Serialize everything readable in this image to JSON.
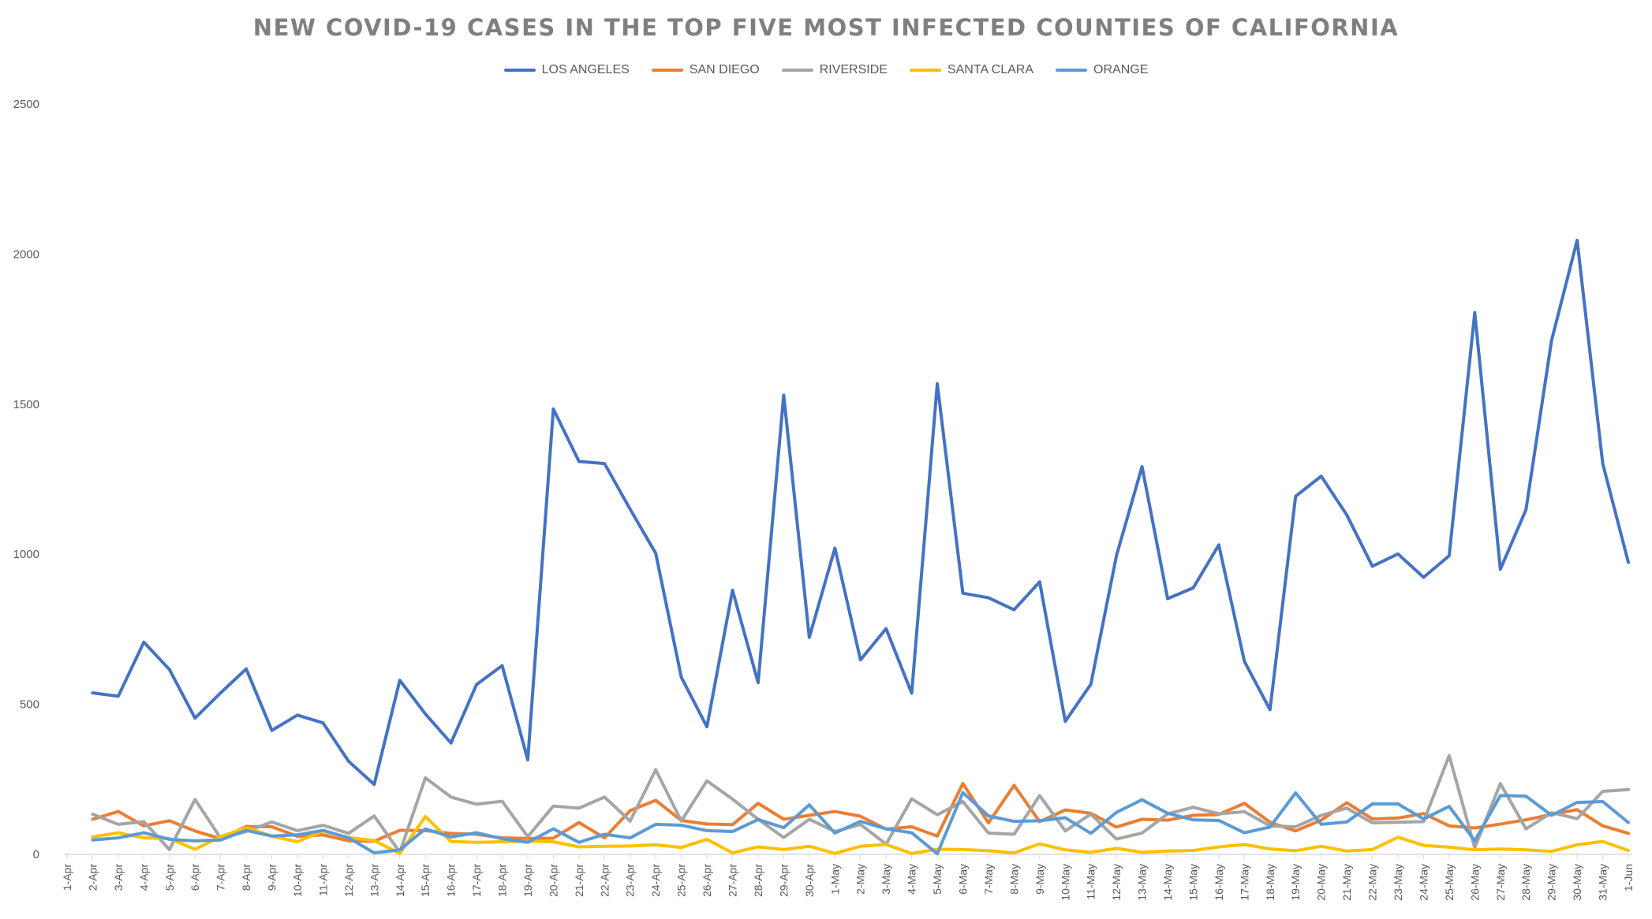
{
  "chart_data": {
    "type": "line",
    "title": "NEW COVID-19 CASES IN THE TOP FIVE MOST INFECTED COUNTIES OF CALIFORNIA",
    "xlabel": "",
    "ylabel": "",
    "ylim": [
      0,
      2500
    ],
    "yticks": [
      0,
      500,
      1000,
      1500,
      2000,
      2500
    ],
    "grid": false,
    "legend_position": "top-center",
    "categories": [
      "1-Apr",
      "2-Apr",
      "3-Apr",
      "4-Apr",
      "5-Apr",
      "6-Apr",
      "7-Apr",
      "8-Apr",
      "9-Apr",
      "10-Apr",
      "11-Apr",
      "12-Apr",
      "13-Apr",
      "14-Apr",
      "15-Apr",
      "16-Apr",
      "17-Apr",
      "18-Apr",
      "19-Apr",
      "20-Apr",
      "21-Apr",
      "22-Apr",
      "23-Apr",
      "24-Apr",
      "25-Apr",
      "26-Apr",
      "27-Apr",
      "28-Apr",
      "29-Apr",
      "30-Apr",
      "1-May",
      "2-May",
      "3-May",
      "4-May",
      "5-May",
      "6-May",
      "7-May",
      "8-May",
      "9-May",
      "10-May",
      "11-May",
      "12-May",
      "13-May",
      "14-May",
      "15-May",
      "16-May",
      "17-May",
      "18-May",
      "19-May",
      "20-May",
      "21-May",
      "22-May",
      "23-May",
      "24-May",
      "25-May",
      "26-May",
      "27-May",
      "28-May",
      "29-May",
      "30-May",
      "31-May",
      "1-Jun"
    ],
    "series": [
      {
        "name": "LOS ANGELES",
        "color": "#4472c4",
        "values": [
          null,
          538,
          527,
          707,
          616,
          454,
          538,
          618,
          413,
          464,
          438,
          310,
          233,
          580,
          468,
          371,
          566,
          629,
          315,
          1484,
          1309,
          1302,
          1150,
          1003,
          590,
          425,
          880,
          572,
          1530,
          723,
          1020,
          648,
          752,
          537,
          1568,
          870,
          855,
          815,
          908,
          443,
          567,
          995,
          1292,
          852,
          888,
          1031,
          643,
          482,
          1193,
          1260,
          1131,
          960,
          1001,
          923,
          995,
          1805,
          950,
          1148,
          1712,
          2046,
          1302,
          973
        ]
      },
      {
        "name": "SAN DIEGO",
        "color": "#ed7d31",
        "values": [
          null,
          117,
          143,
          95,
          112,
          78,
          52,
          93,
          92,
          60,
          65,
          45,
          44,
          80,
          79,
          70,
          67,
          55,
          53,
          54,
          106,
          55,
          146,
          180,
          113,
          101,
          99,
          170,
          117,
          130,
          143,
          127,
          84,
          92,
          61,
          236,
          105,
          230,
          109,
          148,
          137,
          91,
          117,
          114,
          130,
          133,
          170,
          107,
          78,
          114,
          172,
          118,
          121,
          136,
          95,
          88,
          101,
          115,
          133,
          149,
          95,
          70
        ]
      },
      {
        "name": "RIVERSIDE",
        "color": "#a5a5a5",
        "values": [
          null,
          134,
          100,
          109,
          16,
          183,
          54,
          76,
          108,
          79,
          97,
          70,
          128,
          7,
          255,
          191,
          167,
          177,
          59,
          161,
          154,
          191,
          111,
          282,
          111,
          245,
          184,
          117,
          56,
          117,
          76,
          100,
          34,
          185,
          132,
          176,
          71,
          67,
          196,
          78,
          134,
          51,
          71,
          135,
          157,
          135,
          142,
          95,
          92,
          130,
          154,
          105,
          107,
          109,
          329,
          22,
          236,
          85,
          139,
          119,
          210,
          216
        ]
      },
      {
        "name": "SANTA CLARA",
        "color": "#ffc000",
        "values": [
          null,
          58,
          72,
          55,
          53,
          17,
          59,
          89,
          61,
          42,
          78,
          56,
          46,
          3,
          126,
          43,
          40,
          42,
          44,
          42,
          25,
          27,
          28,
          32,
          23,
          50,
          5,
          25,
          16,
          27,
          3,
          27,
          33,
          3,
          17,
          16,
          12,
          5,
          35,
          15,
          7,
          20,
          7,
          11,
          13,
          25,
          33,
          18,
          12,
          27,
          11,
          16,
          57,
          30,
          24,
          15,
          18,
          15,
          10,
          32,
          43,
          13
        ]
      },
      {
        "name": "ORANGE",
        "color": "#5b9bd5",
        "values": [
          null,
          48,
          55,
          72,
          50,
          45,
          48,
          80,
          61,
          65,
          80,
          55,
          5,
          15,
          85,
          58,
          72,
          52,
          40,
          85,
          40,
          67,
          55,
          100,
          97,
          79,
          76,
          116,
          89,
          165,
          71,
          110,
          85,
          72,
          2,
          206,
          128,
          110,
          112,
          122,
          70,
          140,
          182,
          137,
          115,
          113,
          72,
          91,
          205,
          100,
          108,
          168,
          168,
          118,
          160,
          45,
          196,
          194,
          130,
          173,
          176,
          106
        ]
      }
    ]
  }
}
